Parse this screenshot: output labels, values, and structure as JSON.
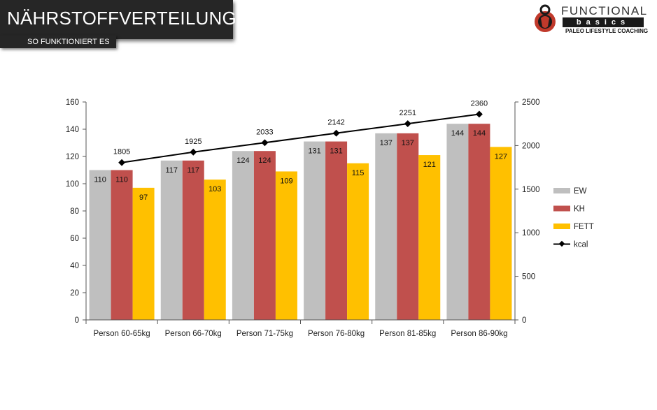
{
  "header": {
    "title": "NÄHRSTOFFVERTEILUNG",
    "subtitle": "SO FUNKTIONIERT ES"
  },
  "logo": {
    "line1": "FUNCTIONAL",
    "line2": "basics",
    "line3": "PALEO LIFESTYLE COACHING",
    "icon": "kettlebell-icon"
  },
  "colors": {
    "ew": "#bfbfbf",
    "kh": "#c0504d",
    "fett": "#ffc000",
    "kcal": "#000000",
    "header_bg": "#262626"
  },
  "chart_data": {
    "type": "bar",
    "categories": [
      "Person 60-65kg",
      "Person 66-70kg",
      "Person 71-75kg",
      "Person 76-80kg",
      "Person 81-85kg",
      "Person 86-90kg"
    ],
    "series": [
      {
        "name": "EW",
        "type": "bar",
        "axis": "left",
        "values": [
          110,
          117,
          124,
          131,
          137,
          144
        ]
      },
      {
        "name": "KH",
        "type": "bar",
        "axis": "left",
        "values": [
          110,
          117,
          124,
          131,
          137,
          144
        ]
      },
      {
        "name": "FETT",
        "type": "bar",
        "axis": "left",
        "values": [
          97,
          103,
          109,
          115,
          121,
          127
        ]
      },
      {
        "name": "kcal",
        "type": "line",
        "axis": "right",
        "values": [
          1805,
          1925,
          2033,
          2142,
          2251,
          2360
        ]
      }
    ],
    "ylim": [
      0,
      160
    ],
    "yticks": [
      "0",
      "20",
      "40",
      "60",
      "80",
      "100",
      "120",
      "140",
      "160"
    ],
    "y2lim": [
      0,
      2500
    ],
    "y2ticks": [
      "0",
      "500",
      "1000",
      "1500",
      "2000",
      "2500"
    ],
    "legend_position": "right",
    "grid": false
  }
}
